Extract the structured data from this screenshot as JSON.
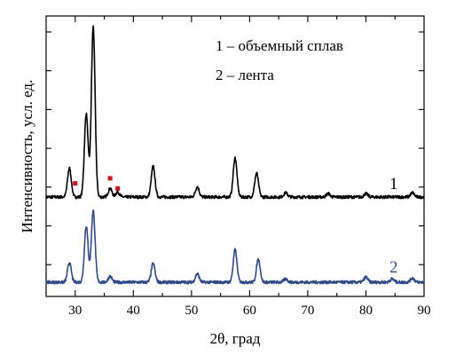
{
  "chart_data": {
    "type": "line",
    "xlabel": "2θ, град",
    "ylabel": "Интенсивность, усл. ед.",
    "xlim": [
      25,
      90
    ],
    "xticks": [
      30,
      40,
      50,
      60,
      70,
      80,
      90
    ],
    "y_tick_labels": false,
    "legend": {
      "placement": "top-right",
      "entries": [
        "1 – объемный сплав",
        "2 – лента"
      ]
    },
    "series": [
      {
        "name": "1",
        "color": "#000000",
        "baseline": 1.0,
        "peaks": [
          {
            "x": 29.0,
            "h": 0.34
          },
          {
            "x": 31.9,
            "h": 0.98
          },
          {
            "x": 33.1,
            "h": 2.0
          },
          {
            "x": 36.0,
            "h": 0.1
          },
          {
            "x": 37.3,
            "h": 0.06
          },
          {
            "x": 43.4,
            "h": 0.36
          },
          {
            "x": 51.0,
            "h": 0.12
          },
          {
            "x": 57.5,
            "h": 0.46
          },
          {
            "x": 61.2,
            "h": 0.28
          },
          {
            "x": 66.2,
            "h": 0.05
          },
          {
            "x": 73.5,
            "h": 0.04
          },
          {
            "x": 80.0,
            "h": 0.04
          },
          {
            "x": 88.0,
            "h": 0.05
          }
        ]
      },
      {
        "name": "2",
        "color": "#2e4a8f",
        "baseline": 0.0,
        "peaks": [
          {
            "x": 29.0,
            "h": 0.23
          },
          {
            "x": 31.9,
            "h": 0.66
          },
          {
            "x": 33.1,
            "h": 0.84
          },
          {
            "x": 36.0,
            "h": 0.07
          },
          {
            "x": 43.4,
            "h": 0.22
          },
          {
            "x": 51.0,
            "h": 0.1
          },
          {
            "x": 57.5,
            "h": 0.38
          },
          {
            "x": 61.5,
            "h": 0.27
          },
          {
            "x": 66.2,
            "h": 0.04
          },
          {
            "x": 80.0,
            "h": 0.06
          },
          {
            "x": 84.5,
            "h": 0.04
          },
          {
            "x": 88.0,
            "h": 0.05
          }
        ]
      }
    ],
    "markers": {
      "color": "#dd1111",
      "points": [
        {
          "x": 30.0,
          "y": 1.16
        },
        {
          "x": 36.0,
          "y": 1.22
        },
        {
          "x": 37.3,
          "y": 1.1
        }
      ]
    }
  }
}
